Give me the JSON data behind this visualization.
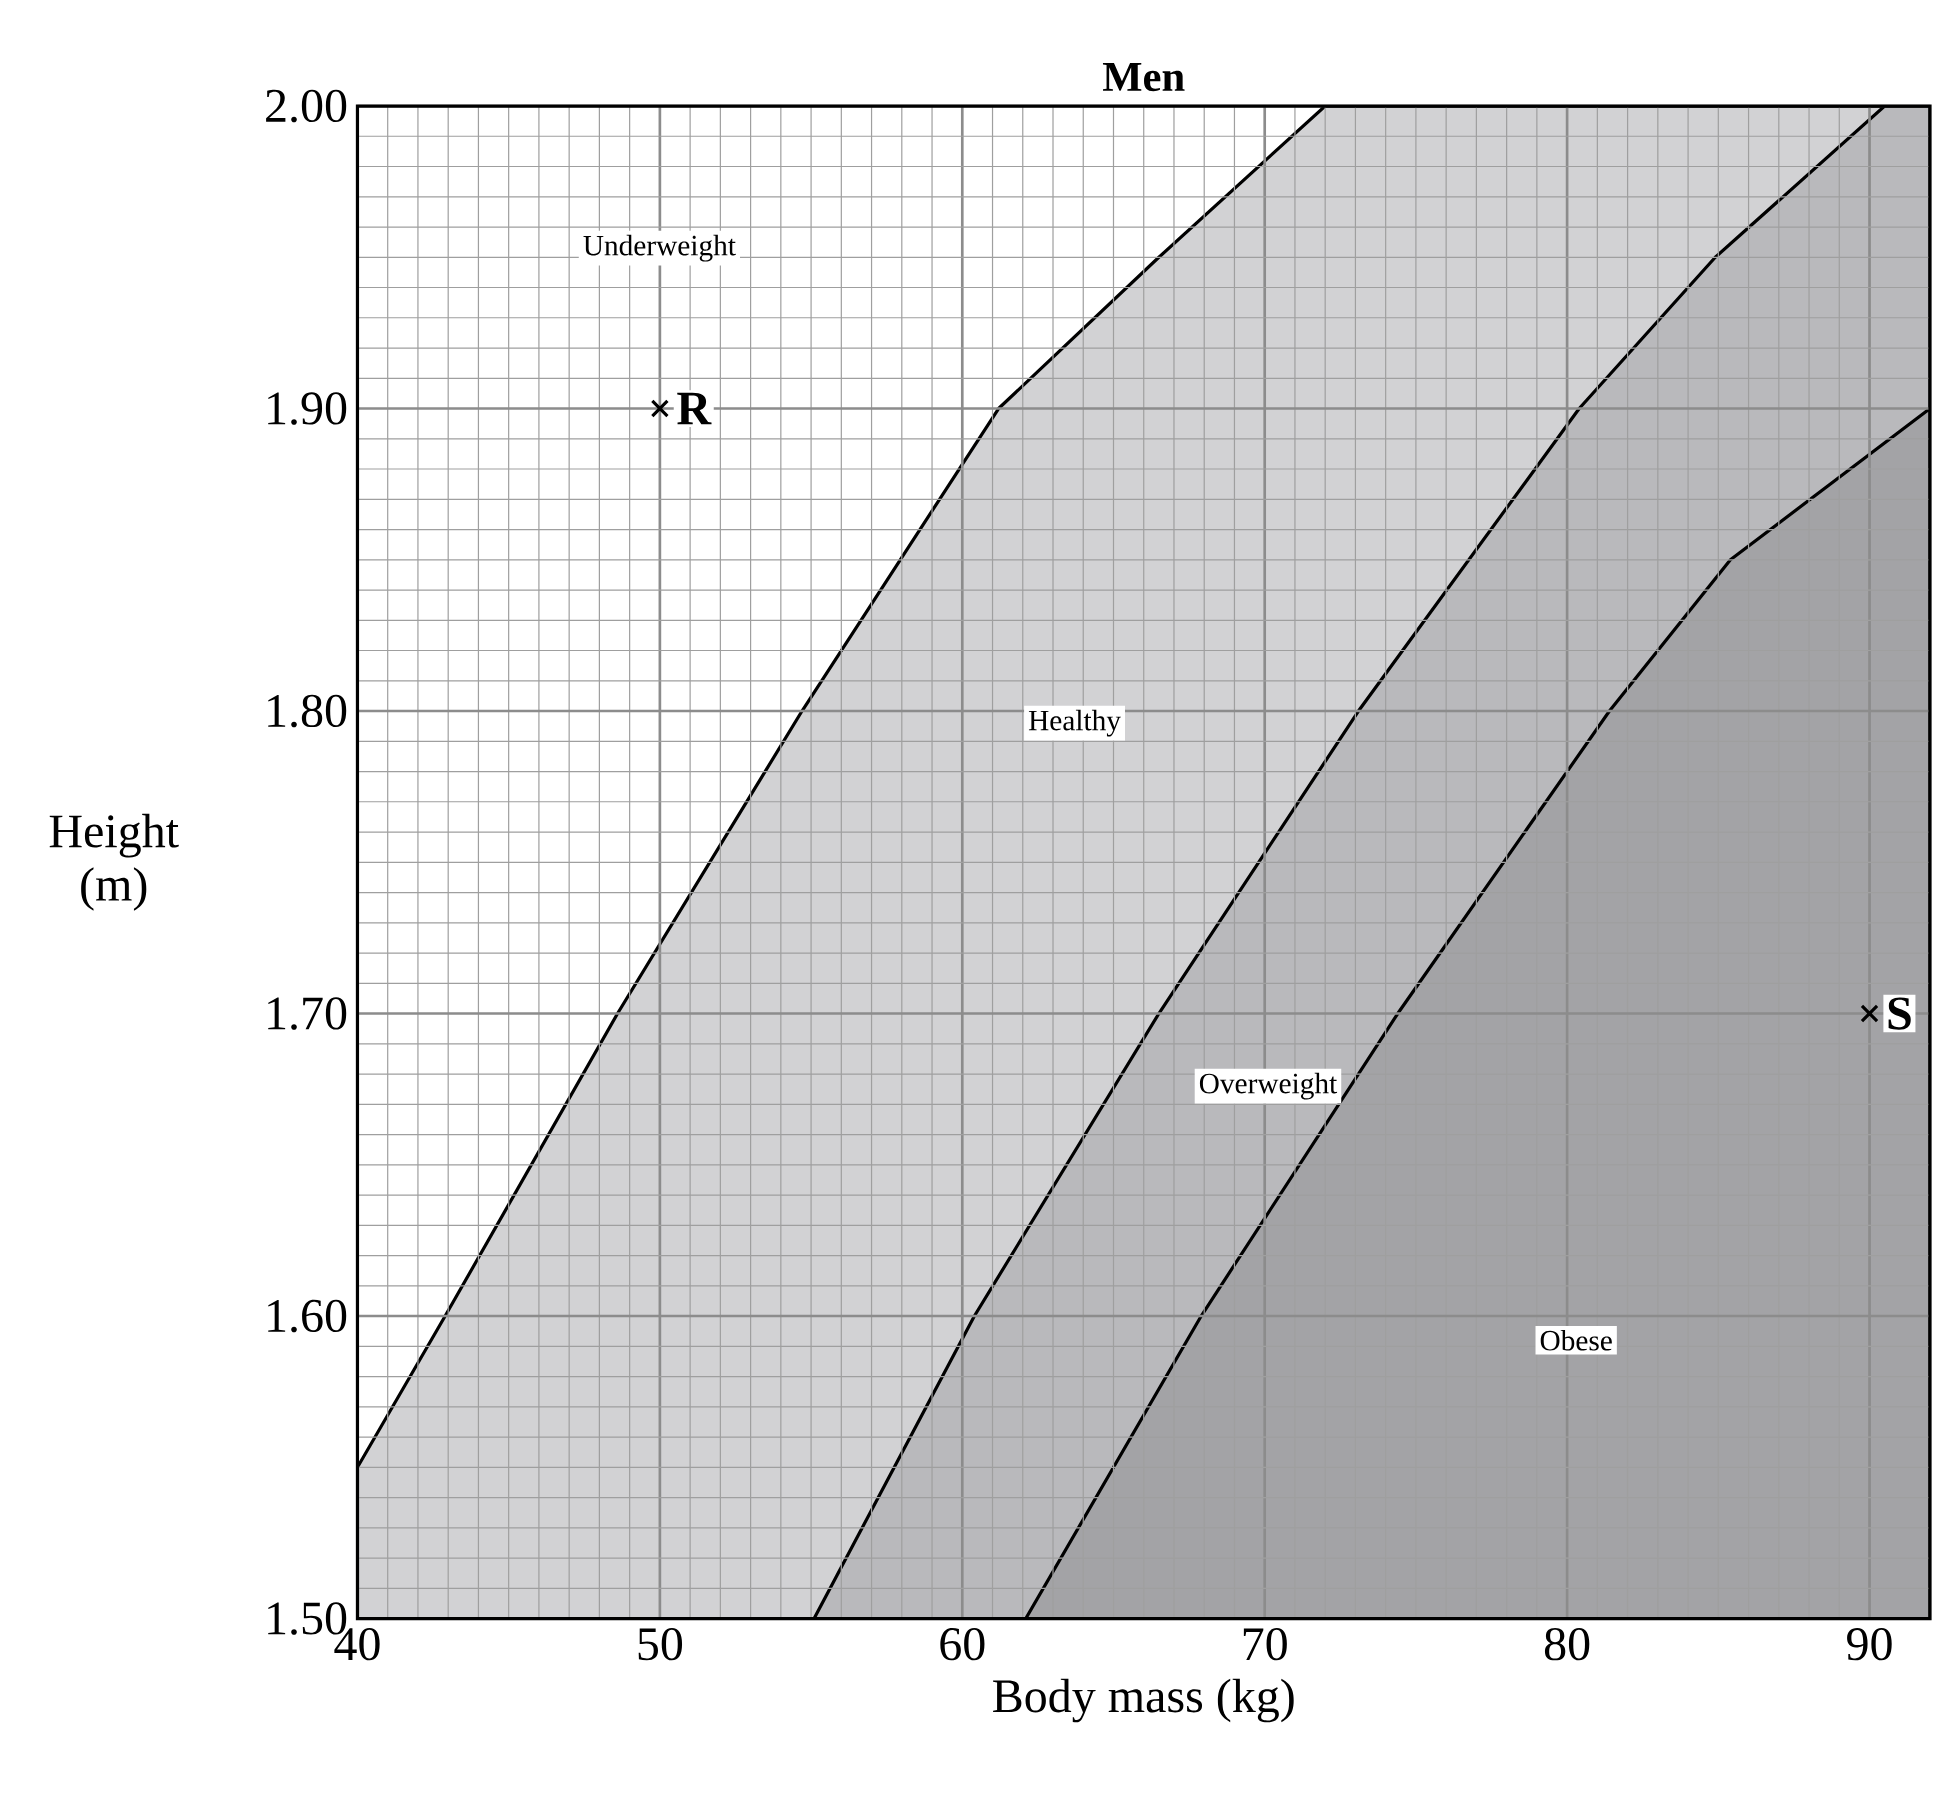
{
  "chart_data": {
    "type": "area",
    "title": "Men",
    "xlabel": "Body mass (kg)",
    "ylabel": "Height (m)",
    "xlim": [
      40,
      92
    ],
    "ylim": [
      1.5,
      2.0
    ],
    "xticks": [
      40,
      50,
      60,
      70,
      80,
      90
    ],
    "yticks": [
      {
        "value": 1.5,
        "label": "1.50"
      },
      {
        "value": 1.6,
        "label": "1.60"
      },
      {
        "value": 1.7,
        "label": "1.70"
      },
      {
        "value": 1.8,
        "label": "1.80"
      },
      {
        "value": 1.9,
        "label": "1.90"
      },
      {
        "value": 2.0,
        "label": "2.00"
      }
    ],
    "grid": true,
    "series": [
      {
        "color": "#d2d2d4",
        "x": [
          40,
          42.9,
          48.6,
          54.7,
          61.2,
          66.5,
          72,
          92
        ],
        "values": [
          1.55,
          1.6,
          1.7,
          1.8,
          1.9,
          1.95,
          2.0,
          2.0
        ]
      },
      {
        "color": "#b9b9bc",
        "x": [
          55.1,
          60.4,
          66.5,
          73.1,
          80.4,
          84.9,
          90.5,
          92
        ],
        "values": [
          1.5,
          1.6,
          1.7,
          1.8,
          1.9,
          1.95,
          2.0,
          2.0
        ]
      },
      {
        "color": "#a3a3a6",
        "x": [
          62.1,
          67.9,
          74.4,
          81.4,
          85.4,
          92
        ],
        "values": [
          1.5,
          1.6,
          1.7,
          1.8,
          1.85,
          1.9
        ]
      },
      {
        "type": "scatter",
        "name": "R",
        "color": "#000000",
        "marker": "cross",
        "x": [
          50
        ],
        "values": [
          1.9
        ]
      },
      {
        "type": "scatter",
        "name": "S",
        "color": "#000000",
        "marker": "cross",
        "x": [
          90
        ],
        "values": [
          1.7
        ]
      }
    ],
    "annotations": [
      "Underweight",
      "Healthy",
      "Overweight",
      "Obese"
    ]
  }
}
